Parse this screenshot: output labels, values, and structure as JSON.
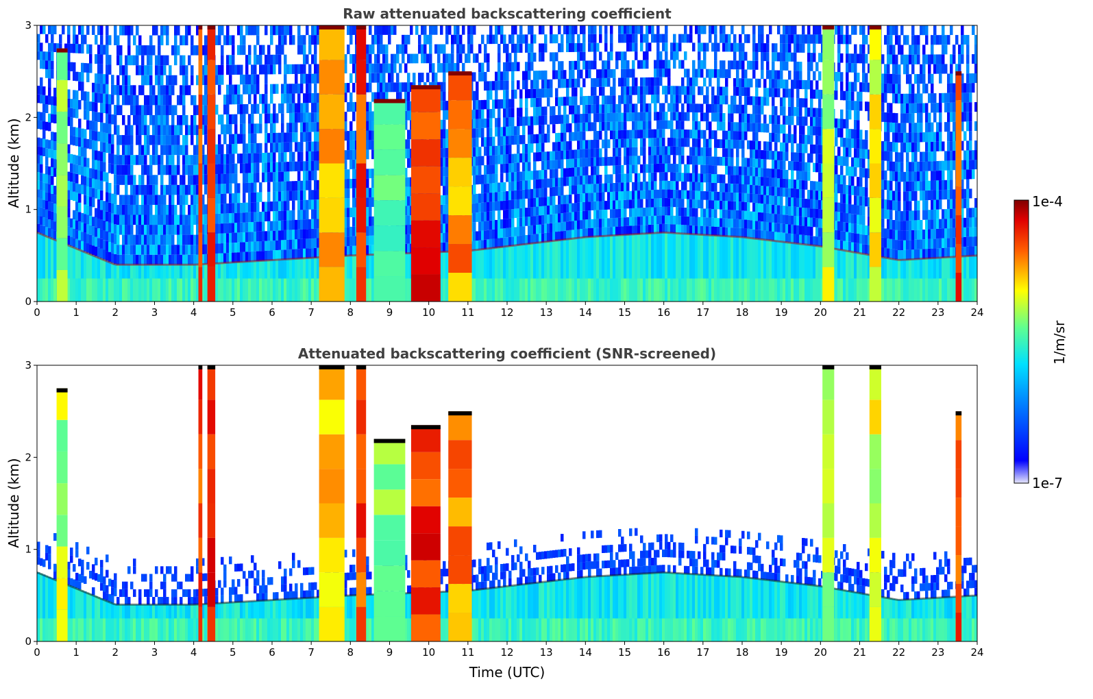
{
  "chart_data": [
    {
      "type": "heatmap",
      "title": "Raw attenuated backscattering coefficient",
      "xlabel": "",
      "ylabel": "Altitude (km)",
      "xlim": [
        0,
        24
      ],
      "ylim": [
        0,
        3
      ],
      "xticks": [
        0,
        1,
        2,
        3,
        4,
        5,
        6,
        7,
        8,
        9,
        10,
        11,
        12,
        13,
        14,
        15,
        16,
        17,
        18,
        19,
        20,
        21,
        22,
        23,
        24
      ],
      "yticks": [
        0,
        1,
        2,
        3
      ],
      "screened": false,
      "cloud_columns": [
        {
          "t0": 0.5,
          "t1": 0.78,
          "top": 2.75,
          "level": 0.62
        },
        {
          "t0": 4.12,
          "t1": 4.22,
          "top": 3.0,
          "level": 0.85
        },
        {
          "t0": 4.35,
          "t1": 4.55,
          "top": 3.0,
          "level": 0.9
        },
        {
          "t0": 7.2,
          "t1": 7.85,
          "top": 3.0,
          "level": 0.72
        },
        {
          "t0": 8.15,
          "t1": 8.4,
          "top": 3.0,
          "level": 0.85
        },
        {
          "t0": 8.6,
          "t1": 9.4,
          "top": 2.2,
          "level": 0.55
        },
        {
          "t0": 9.55,
          "t1": 10.3,
          "top": 2.35,
          "level": 0.88
        },
        {
          "t0": 10.5,
          "t1": 11.1,
          "top": 2.5,
          "level": 0.78
        },
        {
          "t0": 20.05,
          "t1": 20.35,
          "top": 3.0,
          "level": 0.62
        },
        {
          "t0": 21.25,
          "t1": 21.55,
          "top": 3.0,
          "level": 0.65
        },
        {
          "t0": 23.45,
          "t1": 23.6,
          "top": 2.5,
          "level": 0.85
        }
      ],
      "boundary_layer": [
        {
          "t": 0,
          "h": 0.75
        },
        {
          "t": 2,
          "h": 0.4
        },
        {
          "t": 4,
          "h": 0.4
        },
        {
          "t": 6,
          "h": 0.45
        },
        {
          "t": 8,
          "h": 0.5
        },
        {
          "t": 11,
          "h": 0.55
        },
        {
          "t": 14,
          "h": 0.7
        },
        {
          "t": 16,
          "h": 0.75
        },
        {
          "t": 18,
          "h": 0.7
        },
        {
          "t": 20,
          "h": 0.6
        },
        {
          "t": 22,
          "h": 0.45
        },
        {
          "t": 24,
          "h": 0.5
        }
      ]
    },
    {
      "type": "heatmap",
      "title": "Attenuated backscattering coefficient (SNR-screened)",
      "xlabel": "Time (UTC)",
      "ylabel": "Altitude (km)",
      "xlim": [
        0,
        24
      ],
      "ylim": [
        0,
        3
      ],
      "xticks": [
        0,
        1,
        2,
        3,
        4,
        5,
        6,
        7,
        8,
        9,
        10,
        11,
        12,
        13,
        14,
        15,
        16,
        17,
        18,
        19,
        20,
        21,
        22,
        23,
        24
      ],
      "yticks": [
        0,
        1,
        2,
        3
      ],
      "screened": true,
      "cloud_columns": [
        {
          "t0": 0.5,
          "t1": 0.78,
          "top": 2.75,
          "level": 0.62
        },
        {
          "t0": 4.12,
          "t1": 4.22,
          "top": 3.0,
          "level": 0.85
        },
        {
          "t0": 4.35,
          "t1": 4.55,
          "top": 3.0,
          "level": 0.9
        },
        {
          "t0": 7.2,
          "t1": 7.85,
          "top": 3.0,
          "level": 0.72
        },
        {
          "t0": 8.15,
          "t1": 8.4,
          "top": 3.0,
          "level": 0.85
        },
        {
          "t0": 8.6,
          "t1": 9.4,
          "top": 2.2,
          "level": 0.55
        },
        {
          "t0": 9.55,
          "t1": 10.3,
          "top": 2.35,
          "level": 0.88
        },
        {
          "t0": 10.5,
          "t1": 11.1,
          "top": 2.5,
          "level": 0.78
        },
        {
          "t0": 20.05,
          "t1": 20.35,
          "top": 3.0,
          "level": 0.62
        },
        {
          "t0": 21.25,
          "t1": 21.55,
          "top": 3.0,
          "level": 0.65
        },
        {
          "t0": 23.45,
          "t1": 23.6,
          "top": 2.5,
          "level": 0.85
        }
      ],
      "boundary_layer": [
        {
          "t": 0,
          "h": 0.75
        },
        {
          "t": 2,
          "h": 0.4
        },
        {
          "t": 4,
          "h": 0.4
        },
        {
          "t": 6,
          "h": 0.45
        },
        {
          "t": 8,
          "h": 0.5
        },
        {
          "t": 11,
          "h": 0.55
        },
        {
          "t": 14,
          "h": 0.7
        },
        {
          "t": 16,
          "h": 0.75
        },
        {
          "t": 18,
          "h": 0.7
        },
        {
          "t": 20,
          "h": 0.6
        },
        {
          "t": 22,
          "h": 0.45
        },
        {
          "t": 24,
          "h": 0.5
        }
      ]
    }
  ],
  "colorbar": {
    "label": "1/m/sr",
    "min_label": "1e-7",
    "max_label": "1e-4",
    "colormap": "jet",
    "scale": "log"
  }
}
